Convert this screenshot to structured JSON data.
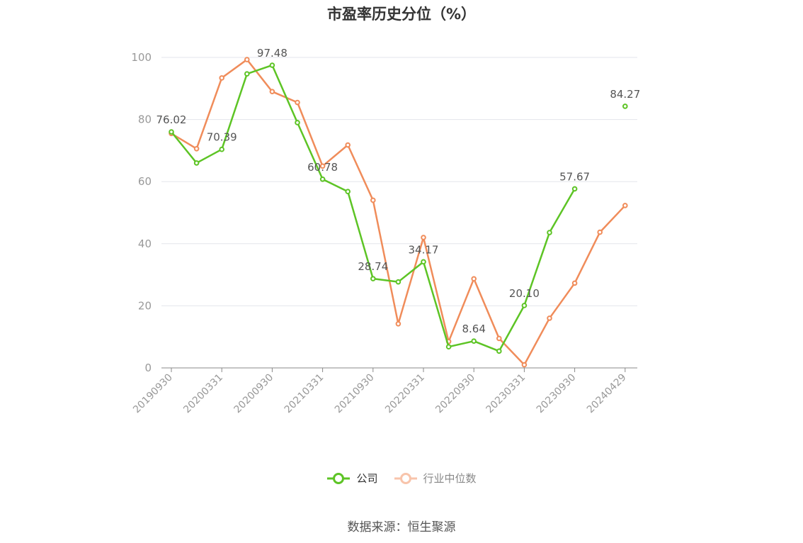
{
  "title": "市盈率历史分位（%）",
  "source_text": "数据来源：恒生聚源",
  "legend": [
    {
      "label": "公司",
      "color": "#5dc425"
    },
    {
      "label": "行业中位数",
      "color": "#f08c5a"
    }
  ],
  "chart_data": {
    "type": "line",
    "title": "市盈率历史分位（%）",
    "ylim": [
      0,
      100
    ],
    "yticks": [
      0,
      20,
      40,
      60,
      80,
      100
    ],
    "grid": true,
    "legend_position": "bottom-center",
    "x": [
      "20190930",
      "20191231",
      "20200331",
      "20200630",
      "20200930",
      "20201231",
      "20210331",
      "20210630",
      "20210930",
      "20211231",
      "20220331",
      "20220630",
      "20220930",
      "20221231",
      "20230331",
      "20230630",
      "20230930",
      "20231231",
      "20240429"
    ],
    "xtick_labels": [
      "20190930",
      "20200331",
      "20200930",
      "20210331",
      "20210930",
      "20220331",
      "20220930",
      "20230331",
      "20230930",
      "20240429"
    ],
    "series": [
      {
        "name": "公司",
        "color": "#5dc425",
        "values": [
          76.02,
          66,
          70.39,
          94.7,
          97.48,
          79,
          60.78,
          56.8,
          28.74,
          27.7,
          34.17,
          6.8,
          8.64,
          5.4,
          20.1,
          43.6,
          57.67,
          null,
          84.27
        ],
        "labels": [
          "76.02",
          null,
          "70.39",
          null,
          "97.48",
          null,
          "60.78",
          null,
          "28.74",
          null,
          "34.17",
          null,
          "8.64",
          null,
          "20.10",
          null,
          "57.67",
          null,
          "84.27"
        ]
      },
      {
        "name": "行业中位数",
        "color": "#f08c5a",
        "values": [
          75.5,
          70.6,
          93.4,
          99.3,
          89,
          85.5,
          65,
          71.8,
          54,
          14.2,
          42,
          8.5,
          28.7,
          9.5,
          1,
          16,
          27.3,
          43.7,
          52.3
        ],
        "labels": []
      }
    ]
  }
}
